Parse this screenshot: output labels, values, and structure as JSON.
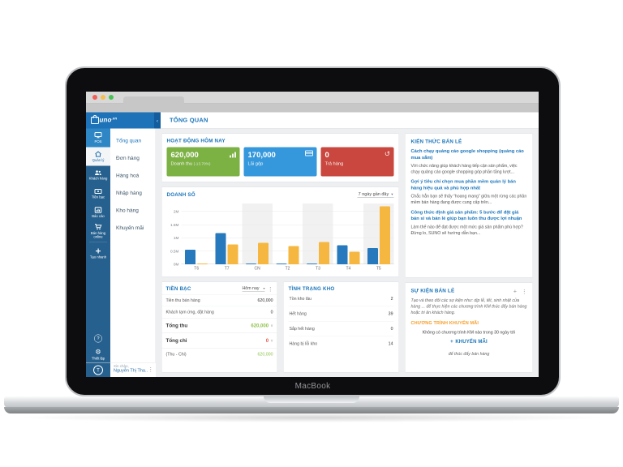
{
  "icons": {
    "kebab": "⋮",
    "caret": "▾",
    "chevron_down": "˅",
    "collapse": "‹",
    "plus": "+",
    "question": "?",
    "gear": "⚙",
    "history": "↺"
  },
  "laptop": {
    "label": "MacBook"
  },
  "app": {
    "logo": {
      "initial": "S",
      "rest": "uno",
      "tld": ".vn"
    },
    "header": {
      "title": "TỔNG QUAN"
    },
    "rail": {
      "items": [
        {
          "label": "POS",
          "icon": "monitor-icon",
          "variant": "bright"
        },
        {
          "label": "Quản lý",
          "icon": "home-icon",
          "active": true
        },
        {
          "label": "Khách hàng",
          "icon": "users-icon"
        },
        {
          "label": "Tiền bạc",
          "icon": "money-icon"
        },
        {
          "label": "Báo cáo",
          "icon": "report-icon"
        },
        {
          "label": "Bán hàng online",
          "icon": "cart-icon"
        },
        {
          "label": "Tạo nhanh",
          "icon": "plus-icon",
          "divider_before": true
        }
      ],
      "settings_label": "Thiết lập"
    },
    "sidebar": {
      "items": [
        {
          "label": "Tổng quan",
          "active": true
        },
        {
          "label": "Đơn hàng"
        },
        {
          "label": "Hàng hoá"
        },
        {
          "label": "Nhập hàng"
        },
        {
          "label": "Kho hàng"
        },
        {
          "label": "Khuyến mãi"
        }
      ]
    },
    "user": {
      "greeting": "Xin chào,",
      "name": "Nguyễn Thị Tha...",
      "avatar_letter": "T"
    },
    "today": {
      "title": "HOẠT ĐỘNG HÔM NAY",
      "cards": [
        {
          "value": "620,000",
          "label": "Doanh thu",
          "delta": "(-13.70%)",
          "color": "#7cb144",
          "icon": "bar-chart-icon"
        },
        {
          "value": "170,000",
          "label": "Lãi gộp",
          "delta": "",
          "color": "#3598dc",
          "icon": "credit-card-icon"
        },
        {
          "value": "0",
          "label": "Trả hàng",
          "delta": "",
          "color": "#c9473e",
          "icon": "return-history-icon"
        }
      ]
    },
    "chart": {
      "title": "DOANH SỐ",
      "range": "7 ngày gần đây"
    },
    "money": {
      "title": "TIỀN BẠC",
      "period": "Hôm nay",
      "rows": [
        {
          "label": "Tiền thu bán hàng",
          "value": "620,000"
        },
        {
          "label": "Khách tạm ứng, đặt hàng",
          "value": "0"
        }
      ],
      "totals": [
        {
          "label": "Tổng thu",
          "value": "620,000",
          "color": "#8fc24c"
        },
        {
          "label": "Tổng chi",
          "value": "0",
          "color": "#e05a4e"
        }
      ],
      "net": {
        "label": "(Thu - Chi)",
        "value": "620,000",
        "color": "#8fc24c"
      }
    },
    "inventory": {
      "title": "TÌNH TRẠNG KHO",
      "rows": [
        {
          "label": "Tồn kho lâu",
          "value": "2"
        },
        {
          "label": "Hết hàng",
          "value": "39"
        },
        {
          "label": "Sắp hết hàng",
          "value": "0"
        },
        {
          "label": "Hàng bị lỗi kho",
          "value": "14"
        }
      ]
    },
    "knowledge": {
      "title": "KIẾN THỨC BÁN LẺ",
      "articles": [
        {
          "title": "Cách chạy quảng cáo google shopping (quảng cáo mua sắm)",
          "excerpt": "Với chức năng giúp khách hàng tiếp cận sản phẩm, việc chạy quảng cáo google shopping góp phần tăng lượt..."
        },
        {
          "title": "Gợi ý tiêu chí chọn mua phần mềm quản lý bán hàng hiệu quả và phù hợp nhất",
          "excerpt": "Chắc hẳn bạn sẽ thấy “hoang mang” giữa một rừng các phần mềm bán hàng đang được cung cấp trên..."
        },
        {
          "title": "Công thức định giá sản phẩm: 5 bước để đặt giá bán sỉ và bán lẻ giúp bạn luôn thu được lợi nhuận",
          "excerpt": "Làm thế nào để đạt được một mức giá sản phẩm phù hợp? Đừng lo, SUNO sẽ hướng dẫn bạn..."
        }
      ]
    },
    "events": {
      "title": "SỰ KIỆN BÁN LẺ",
      "intro": "Tạo và theo dõi các sự kiện như: dịp lễ, tết, sinh nhật cửa hàng ... để thực hiện các chương trình KM thúc đẩy bán hàng hoặc tri ân khách hàng.",
      "promo_title": "CHƯƠNG TRÌNH KHUYẾN MÃI",
      "empty": "Không có chương trình KM nào trong 30 ngày tới",
      "cta_label": "KHUYẾN MÃI",
      "footer": "để thúc đẩy bán hàng"
    }
  },
  "chart_data": {
    "type": "bar",
    "title": "DOANH SỐ",
    "xlabel": "",
    "ylabel": "",
    "categories": [
      "T6",
      "T7",
      "CN",
      "T2",
      "T3",
      "T4",
      "T5"
    ],
    "series": [
      {
        "name": "series-blue",
        "color": "#2779bd",
        "values": [
          0.55,
          1.18,
          0.02,
          0.02,
          0.02,
          0.72,
          0.62
        ]
      },
      {
        "name": "series-yellow",
        "color": "#f5b73f",
        "values": [
          0.03,
          0.76,
          0.81,
          0.69,
          0.85,
          0.47,
          2.2
        ]
      }
    ],
    "unit": "M (millions VND)",
    "ylim": [
      0,
      2.3
    ],
    "yticks": [
      {
        "label": "0M",
        "value": 0
      },
      {
        "label": "0.5M",
        "value": 0.5
      },
      {
        "label": "1M",
        "value": 1
      },
      {
        "label": "1.5M",
        "value": 1.5
      },
      {
        "label": "2M",
        "value": 2
      }
    ],
    "grid": true,
    "legend": false,
    "plot_bands": [
      2,
      4,
      6
    ]
  }
}
